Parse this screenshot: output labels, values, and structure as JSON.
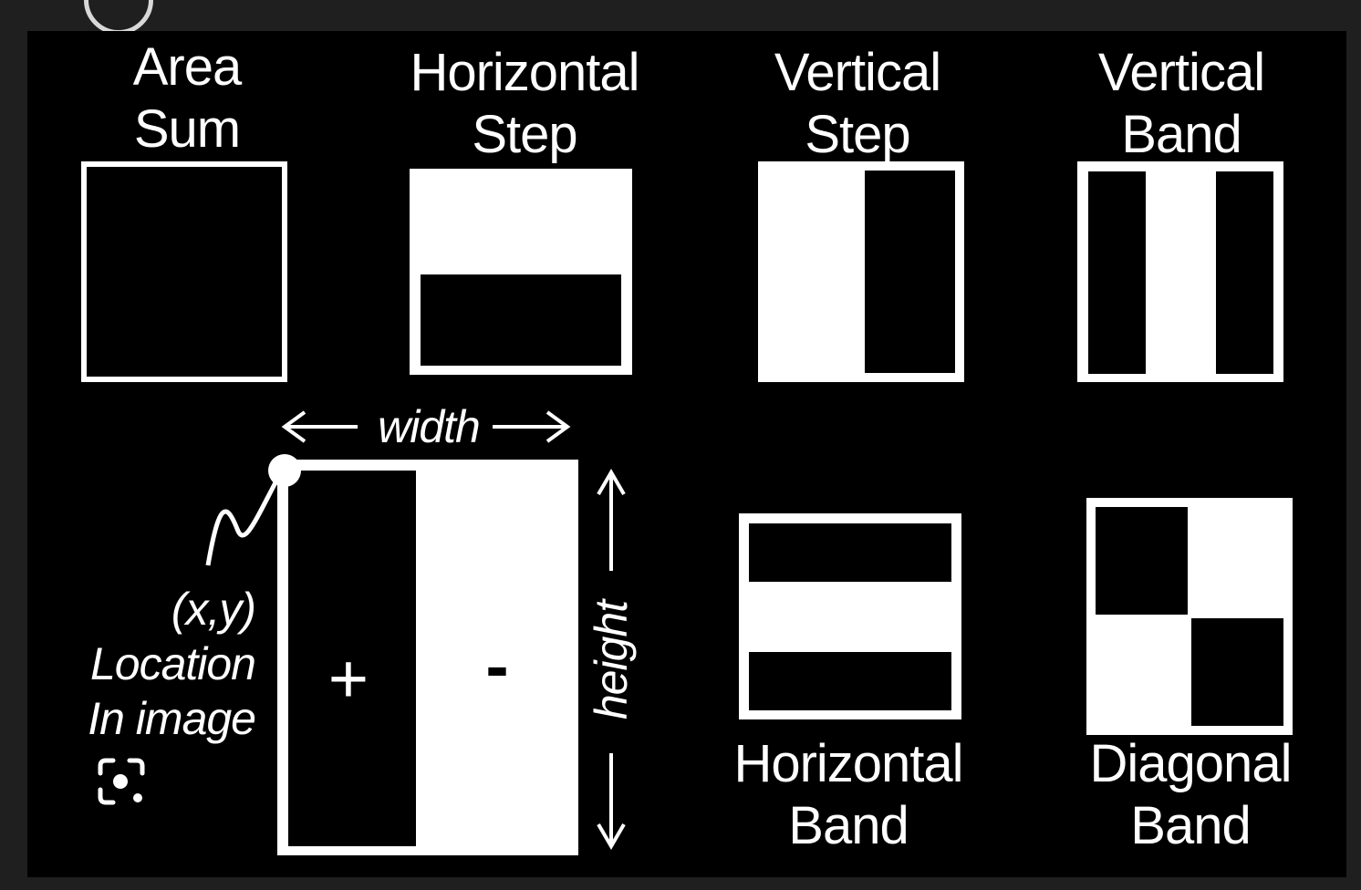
{
  "features": {
    "area_sum": {
      "line1": "Area",
      "line2": "Sum"
    },
    "horizontal_step": {
      "line1": "Horizontal",
      "line2": "Step"
    },
    "vertical_step": {
      "line1": "Vertical",
      "line2": "Step"
    },
    "vertical_band": {
      "line1": "Vertical",
      "line2": "Band"
    },
    "horizontal_band": {
      "line1": "Horizontal",
      "line2": "Band"
    },
    "diagonal_band": {
      "line1": "Diagonal",
      "line2": "Band"
    }
  },
  "detail": {
    "width_label": "width",
    "height_label": "height",
    "plus_sign": "+",
    "minus_sign": "-",
    "location": {
      "line1": "(x,y)",
      "line2": "Location",
      "line3": "In image"
    }
  },
  "colors": {
    "background": "#000000",
    "foreground": "#ffffff",
    "frame": "#1f1f1f"
  },
  "icons": {
    "lens": "visual-search-icon"
  }
}
